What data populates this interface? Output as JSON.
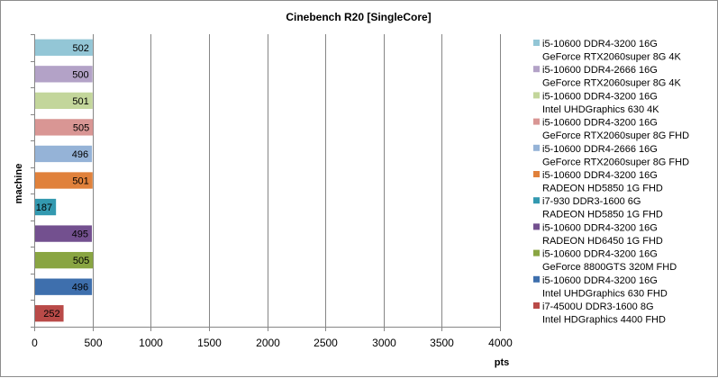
{
  "chart_data": {
    "type": "bar",
    "orientation": "horizontal",
    "title": "Cinebench R20 [SingleCore]",
    "xlabel": "pts",
    "ylabel": "machine",
    "xlim": [
      0,
      4000
    ],
    "xticks": [
      0,
      500,
      1000,
      1500,
      2000,
      2500,
      3000,
      3500,
      4000
    ],
    "grid": "vertical major gridlines",
    "legend_position": "right",
    "bars": [
      {
        "value": 502,
        "color": "#93c6d6",
        "legend": [
          "i5-10600  DDR4-3200 16G",
          "GeForce RTX2060super 8G  4K"
        ]
      },
      {
        "value": 500,
        "color": "#b3a2c7",
        "legend": [
          "i5-10600  DDR4-2666 16G",
          "GeForce RTX2060super 8G  4K"
        ]
      },
      {
        "value": 501,
        "color": "#c3d69b",
        "legend": [
          "i5-10600 DDR4-3200 16G",
          "Intel UHDGraphics 630  4K"
        ]
      },
      {
        "value": 505,
        "color": "#d99694",
        "legend": [
          "i5-10600  DDR4-3200 16G",
          "GeForce RTX2060super 8G  FHD"
        ]
      },
      {
        "value": 496,
        "color": "#95b3d7",
        "legend": [
          "i5-10600  DDR4-2666 16G",
          "GeForce RTX2060super 8G  FHD"
        ]
      },
      {
        "value": 501,
        "color": "#e0813b",
        "legend": [
          "i5-10600  DDR4-3200 16G",
          "RADEON HD5850 1G FHD"
        ]
      },
      {
        "value": 187,
        "color": "#3399b0",
        "legend": [
          "i7-930  DDR3-1600 6G",
          "RADEON HD5850  1G  FHD"
        ]
      },
      {
        "value": 495,
        "color": "#73508f",
        "legend": [
          "i5-10600  DDR4-3200 16G",
          "RADEON HD6450  1G  FHD"
        ]
      },
      {
        "value": 505,
        "color": "#89a542",
        "legend": [
          "i5-10600  DDR4-3200 16G",
          "GeForce 8800GTS 320M  FHD"
        ]
      },
      {
        "value": 496,
        "color": "#3e6fad",
        "legend": [
          "i5-10600 DDR4-3200 16G",
          "Intel UHDGraphics  630  FHD"
        ]
      },
      {
        "value": 252,
        "color": "#b94a48",
        "legend": [
          "i7-4500U DDR3-1600 8G",
          "Intel HDGraphics 4400  FHD"
        ]
      }
    ]
  }
}
